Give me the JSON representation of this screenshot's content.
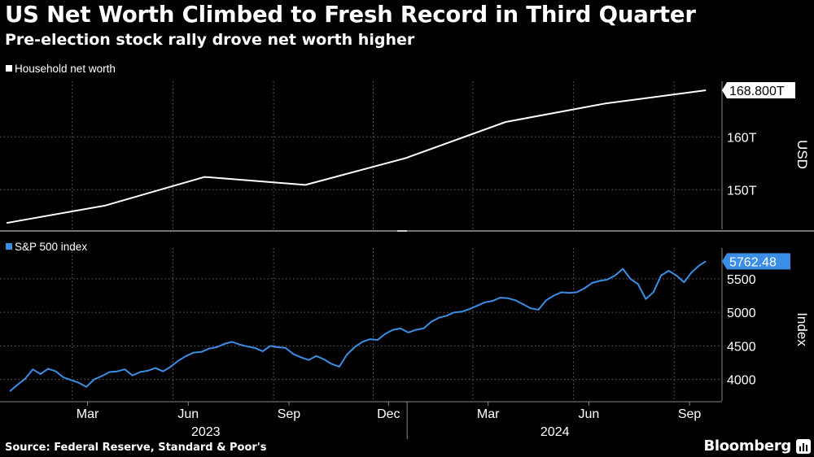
{
  "title": "US Net Worth Climbed to Fresh Record in Third Quarter",
  "subtitle": "Pre-election stock rally drove net worth higher",
  "source": "Source: Federal Reserve, Standard & Poor's",
  "brand": "Bloomberg",
  "colors": {
    "networth_line": "#ffffff",
    "sp500_line": "#3a8ee6",
    "grid": "#666666"
  },
  "chart_data": [
    {
      "type": "line",
      "legend": "Household net worth",
      "ylabel": "USD",
      "yticks": [
        {
          "value": 150,
          "label": "150T"
        },
        {
          "value": 160,
          "label": "160T"
        }
      ],
      "ylim": [
        142.5,
        170.5
      ],
      "last_value_label": "168.800T",
      "grid": true,
      "x": [
        "2022-12-31",
        "2023-03-31",
        "2023-06-30",
        "2023-09-30",
        "2023-12-31",
        "2024-03-31",
        "2024-06-30",
        "2024-09-30"
      ],
      "values": [
        143.7,
        147.0,
        152.4,
        150.9,
        156.0,
        162.8,
        166.3,
        168.8
      ]
    },
    {
      "type": "line",
      "legend": "S&P 500 index",
      "ylabel": "Index",
      "yticks": [
        {
          "value": 4000,
          "label": "4000"
        },
        {
          "value": 4500,
          "label": "4500"
        },
        {
          "value": 5000,
          "label": "5000"
        },
        {
          "value": 5500,
          "label": "5500"
        }
      ],
      "ylim": [
        3680,
        5960
      ],
      "last_value_label": "5762.48",
      "grid": true,
      "x": [
        "2023-01-03",
        "2023-01-10",
        "2023-01-17",
        "2023-01-24",
        "2023-01-31",
        "2023-02-07",
        "2023-02-14",
        "2023-02-21",
        "2023-02-28",
        "2023-03-07",
        "2023-03-14",
        "2023-03-21",
        "2023-03-28",
        "2023-04-04",
        "2023-04-11",
        "2023-04-18",
        "2023-04-25",
        "2023-05-02",
        "2023-05-09",
        "2023-05-16",
        "2023-05-23",
        "2023-05-30",
        "2023-06-06",
        "2023-06-13",
        "2023-06-20",
        "2023-06-27",
        "2023-07-04",
        "2023-07-11",
        "2023-07-18",
        "2023-07-25",
        "2023-08-01",
        "2023-08-08",
        "2023-08-15",
        "2023-08-22",
        "2023-08-29",
        "2023-09-05",
        "2023-09-12",
        "2023-09-19",
        "2023-09-26",
        "2023-10-03",
        "2023-10-10",
        "2023-10-17",
        "2023-10-24",
        "2023-10-31",
        "2023-11-07",
        "2023-11-14",
        "2023-11-21",
        "2023-11-28",
        "2023-12-05",
        "2023-12-12",
        "2023-12-19",
        "2023-12-26",
        "2024-01-02",
        "2024-01-09",
        "2024-01-16",
        "2024-01-23",
        "2024-01-30",
        "2024-02-06",
        "2024-02-13",
        "2024-02-20",
        "2024-02-27",
        "2024-03-05",
        "2024-03-12",
        "2024-03-19",
        "2024-03-26",
        "2024-04-02",
        "2024-04-09",
        "2024-04-16",
        "2024-04-23",
        "2024-04-30",
        "2024-05-07",
        "2024-05-14",
        "2024-05-21",
        "2024-05-28",
        "2024-06-04",
        "2024-06-11",
        "2024-06-18",
        "2024-06-25",
        "2024-07-02",
        "2024-07-09",
        "2024-07-16",
        "2024-07-23",
        "2024-07-30",
        "2024-08-06",
        "2024-08-13",
        "2024-08-20",
        "2024-08-27",
        "2024-09-03",
        "2024-09-10",
        "2024-09-17",
        "2024-09-24",
        "2024-09-30"
      ],
      "values": [
        3824,
        3920,
        4010,
        4150,
        4080,
        4160,
        4120,
        4030,
        3990,
        3950,
        3890,
        4000,
        4050,
        4110,
        4120,
        4150,
        4060,
        4110,
        4130,
        4170,
        4120,
        4190,
        4280,
        4350,
        4400,
        4410,
        4460,
        4480,
        4530,
        4560,
        4520,
        4490,
        4470,
        4420,
        4500,
        4480,
        4470,
        4380,
        4330,
        4290,
        4350,
        4300,
        4230,
        4190,
        4370,
        4480,
        4560,
        4600,
        4590,
        4680,
        4740,
        4760,
        4700,
        4740,
        4760,
        4860,
        4920,
        4950,
        5000,
        5010,
        5050,
        5100,
        5150,
        5170,
        5220,
        5210,
        5180,
        5120,
        5060,
        5040,
        5180,
        5250,
        5300,
        5290,
        5300,
        5360,
        5440,
        5470,
        5490,
        5550,
        5650,
        5500,
        5420,
        5200,
        5300,
        5550,
        5620,
        5550,
        5450,
        5600,
        5700,
        5762
      ]
    }
  ],
  "x_axis": {
    "months": [
      "Mar",
      "Jun",
      "Sep",
      "Dec",
      "Mar",
      "Jun",
      "Sep"
    ],
    "years": [
      "2023",
      "2024"
    ]
  }
}
